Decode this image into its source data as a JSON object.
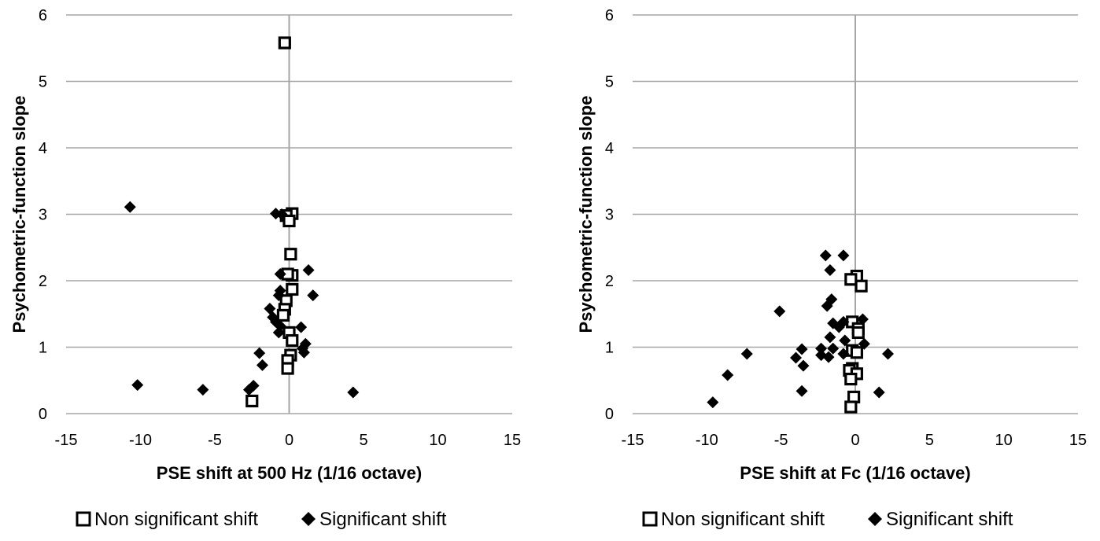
{
  "chart_data": [
    {
      "type": "scatter",
      "xlabel": "PSE shift at 500 Hz (1/16 octave)",
      "ylabel": "Psychometric-function slope",
      "xlim": [
        -15,
        15
      ],
      "ylim": [
        0,
        6
      ],
      "xticks": [
        "-15",
        "-10",
        "-5",
        "0",
        "5",
        "10",
        "15"
      ],
      "yticks": [
        "0",
        "1",
        "2",
        "3",
        "4",
        "5",
        "6"
      ],
      "grid": "horizontal",
      "legend_position": "bottom",
      "series": [
        {
          "name": "Non significant shift",
          "marker": "open-square",
          "points": [
            [
              -0.3,
              5.58
            ],
            [
              0.2,
              3.01
            ],
            [
              -0.2,
              2.98
            ],
            [
              0,
              2.9
            ],
            [
              0.1,
              2.4
            ],
            [
              0.2,
              2.08
            ],
            [
              -0.1,
              2.1
            ],
            [
              0.2,
              1.87
            ],
            [
              -0.2,
              1.7
            ],
            [
              -0.3,
              1.57
            ],
            [
              -0.4,
              1.48
            ],
            [
              0,
              1.22
            ],
            [
              0.2,
              1.1
            ],
            [
              0.1,
              0.88
            ],
            [
              -0.1,
              0.8
            ],
            [
              -0.1,
              0.68
            ],
            [
              -2.5,
              0.19
            ]
          ]
        },
        {
          "name": "Significant shift",
          "marker": "filled-diamond",
          "points": [
            [
              -10.7,
              3.11
            ],
            [
              -0.9,
              3.01
            ],
            [
              -0.5,
              3.0
            ],
            [
              -0.6,
              2.1
            ],
            [
              1.3,
              2.16
            ],
            [
              -0.6,
              1.85
            ],
            [
              -0.7,
              1.78
            ],
            [
              1.6,
              1.78
            ],
            [
              -1.3,
              1.58
            ],
            [
              -1.1,
              1.45
            ],
            [
              -0.9,
              1.38
            ],
            [
              -0.6,
              1.32
            ],
            [
              -0.7,
              1.22
            ],
            [
              0.8,
              1.3
            ],
            [
              1.1,
              1.05
            ],
            [
              0.9,
              0.98
            ],
            [
              1.0,
              0.92
            ],
            [
              -2.0,
              0.91
            ],
            [
              -1.8,
              0.73
            ],
            [
              -10.2,
              0.43
            ],
            [
              -5.8,
              0.36
            ],
            [
              -2.4,
              0.42
            ],
            [
              -2.7,
              0.36
            ],
            [
              4.3,
              0.32
            ]
          ]
        }
      ]
    },
    {
      "type": "scatter",
      "xlabel": "PSE shift at Fc (1/16 octave)",
      "ylabel": "Psychometric-function slope",
      "xlim": [
        -15,
        15
      ],
      "ylim": [
        0,
        6
      ],
      "xticks": [
        "-15",
        "-10",
        "-5",
        "0",
        "5",
        "10",
        "15"
      ],
      "yticks": [
        "0",
        "1",
        "2",
        "3",
        "4",
        "5",
        "6"
      ],
      "grid": "horizontal",
      "legend_position": "bottom",
      "series": [
        {
          "name": "Non significant shift",
          "marker": "open-square",
          "points": [
            [
              0.1,
              2.07
            ],
            [
              -0.3,
              2.02
            ],
            [
              0.4,
              1.92
            ],
            [
              -0.2,
              1.38
            ],
            [
              0.2,
              1.28
            ],
            [
              0.2,
              1.22
            ],
            [
              -0.2,
              0.95
            ],
            [
              0.1,
              0.92
            ],
            [
              -0.2,
              0.68
            ],
            [
              -0.4,
              0.65
            ],
            [
              0.1,
              0.6
            ],
            [
              -0.3,
              0.52
            ],
            [
              -0.1,
              0.25
            ],
            [
              -0.3,
              0.1
            ]
          ]
        },
        {
          "name": "Significant shift",
          "marker": "filled-diamond",
          "points": [
            [
              -2.0,
              2.38
            ],
            [
              -0.8,
              2.38
            ],
            [
              -1.7,
              2.16
            ],
            [
              -1.6,
              1.72
            ],
            [
              -1.9,
              1.62
            ],
            [
              -5.1,
              1.54
            ],
            [
              0.5,
              1.42
            ],
            [
              -0.8,
              1.38
            ],
            [
              -1.1,
              1.3
            ],
            [
              -1.5,
              1.36
            ],
            [
              -1.7,
              1.15
            ],
            [
              -0.7,
              1.1
            ],
            [
              0.6,
              1.05
            ],
            [
              -2.3,
              0.98
            ],
            [
              -1.5,
              0.98
            ],
            [
              -3.6,
              0.97
            ],
            [
              -7.3,
              0.9
            ],
            [
              -2.3,
              0.88
            ],
            [
              -1.8,
              0.85
            ],
            [
              -0.8,
              0.9
            ],
            [
              2.2,
              0.9
            ],
            [
              -4.0,
              0.84
            ],
            [
              -3.5,
              0.72
            ],
            [
              -8.6,
              0.58
            ],
            [
              -3.6,
              0.34
            ],
            [
              1.6,
              0.32
            ],
            [
              -9.6,
              0.17
            ]
          ]
        }
      ]
    }
  ],
  "legend": {
    "items": [
      {
        "label": "Non significant shift",
        "marker": "open-square"
      },
      {
        "label": "Significant shift",
        "marker": "filled-diamond"
      }
    ]
  }
}
